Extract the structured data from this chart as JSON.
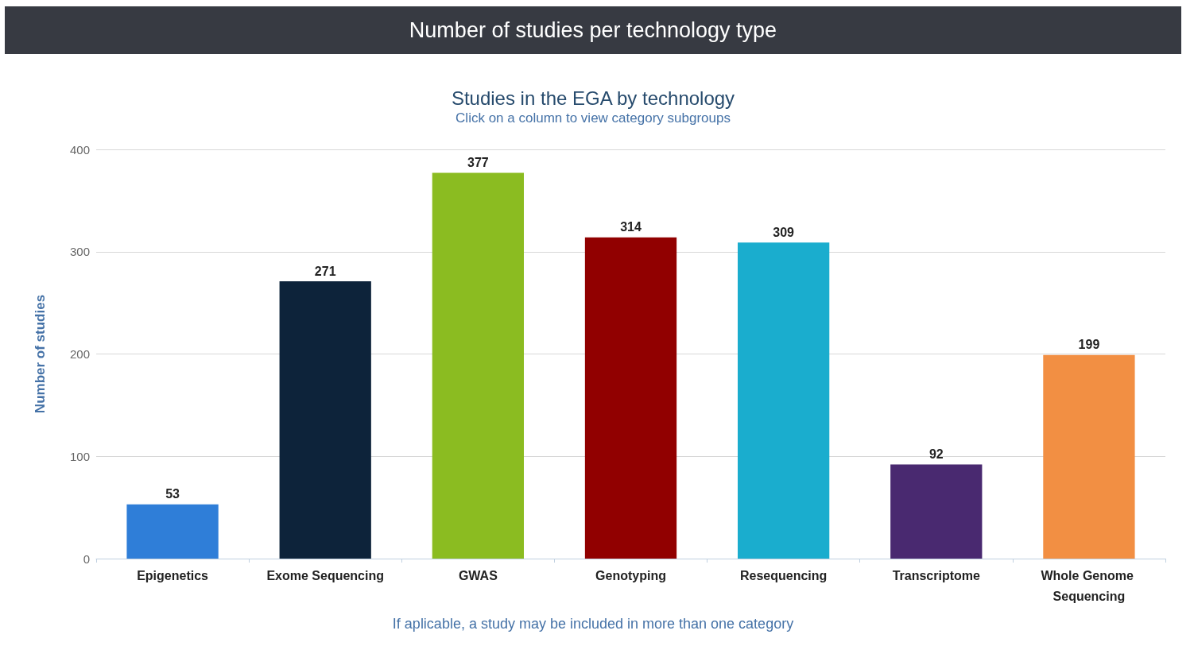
{
  "chart_data": {
    "type": "bar",
    "title": "Number of studies per technology type",
    "subtitle": "Studies in the EGA by technology",
    "ylabel": "Number of studies",
    "categories": [
      "Epigenetics",
      "Exome Sequencing",
      "GWAS",
      "Genotyping",
      "Resequencing",
      "Transcriptome",
      "Whole Genome Sequencing"
    ],
    "values": [
      53,
      271,
      377,
      314,
      309,
      92,
      199
    ],
    "colors": [
      "#2f7ed8",
      "#0d233a",
      "#8bbc21",
      "#910000",
      "#1aadce",
      "#492970",
      "#f28f43"
    ],
    "ylim": [
      0,
      400
    ],
    "yticks": [
      0,
      100,
      200,
      300,
      400
    ],
    "grid": "y",
    "data_labels": true,
    "annotations": [
      "Click on a column to view category subgroups",
      "If aplicable, a study may be included in more than one category"
    ]
  }
}
